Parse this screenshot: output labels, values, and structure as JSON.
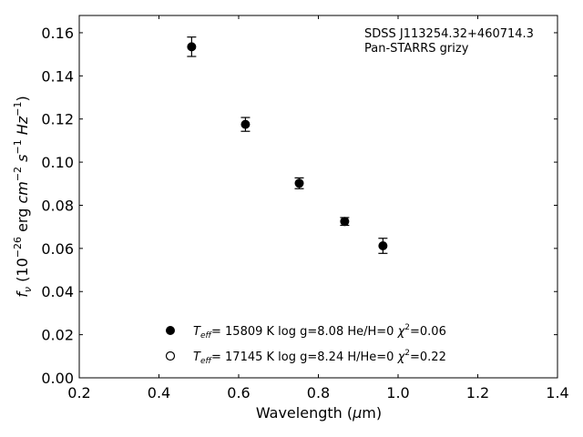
{
  "chart_data": {
    "type": "scatter",
    "title": "",
    "xlabel": "Wavelength (μm)",
    "ylabel": "f_ν (10^-26 erg cm^-2 s^-1 Hz^-1)",
    "xlim": [
      0.2,
      1.4
    ],
    "ylim": [
      0.0,
      0.168
    ],
    "xticks": [
      0.2,
      0.4,
      0.6,
      0.8,
      1.0,
      1.2,
      1.4
    ],
    "yticks": [
      0.0,
      0.02,
      0.04,
      0.06,
      0.08,
      0.1,
      0.12,
      0.14,
      0.16
    ],
    "grid": false,
    "annotation": {
      "object": "SDSS J113254.32+460714.3",
      "photometry": "Pan-STARRS grizy"
    },
    "series": [
      {
        "marker": "filled-circle",
        "color": "#000000",
        "x": [
          0.482,
          0.617,
          0.752,
          0.866,
          0.962
        ],
        "y": [
          0.1535,
          0.1175,
          0.0902,
          0.0725,
          0.0612
        ],
        "yerr": [
          0.0045,
          0.0032,
          0.0025,
          0.0018,
          0.0035
        ]
      }
    ],
    "legend": {
      "placement": "lower-center",
      "entries": [
        {
          "marker": "filled-circle",
          "label": "T_eff= 15809 K  log g=8.08  He/H=0  χ2=0.06"
        },
        {
          "marker": "open-circle",
          "label": "T_eff= 17145 K  log g=8.24  H/He=0  χ2=0.22"
        }
      ]
    }
  }
}
